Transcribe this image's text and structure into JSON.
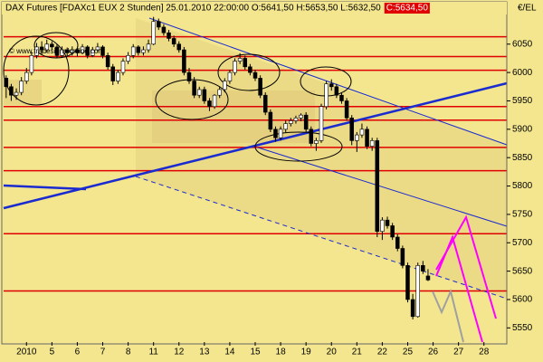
{
  "chart_data": {
    "type": "candlestick",
    "title": "DAX Futures [FDAXc1 EUX 2 Stunden] 25.01.2010 22:00:00 O:5641,50 H:5653,50 L:5632,50",
    "title_last": "C:5634,50",
    "unit_label": "€/EL",
    "watermark": "© www.tradesignalonline.com",
    "up_color": "#ffffff",
    "down_color": "#000000",
    "background": "#f3e68f",
    "categories": [
      null,
      null,
      null,
      null,
      "2010",
      null,
      null,
      null,
      null,
      "5",
      null,
      null,
      null,
      null,
      "6",
      null,
      null,
      null,
      null,
      "7",
      null,
      null,
      null,
      null,
      "8",
      null,
      null,
      null,
      null,
      "11",
      null,
      null,
      null,
      null,
      "12",
      null,
      null,
      null,
      null,
      "13",
      null,
      null,
      null,
      null,
      "14",
      null,
      null,
      null,
      null,
      "15",
      null,
      null,
      null,
      null,
      "18",
      null,
      null,
      null,
      null,
      "19",
      null,
      null,
      null,
      null,
      "20",
      null,
      null,
      null,
      null,
      "21",
      null,
      null,
      null,
      null,
      "22",
      null,
      null,
      null,
      null,
      "25",
      null,
      null,
      null,
      null,
      "26",
      null,
      null,
      null,
      null,
      "27",
      null,
      null,
      null,
      null,
      "28",
      null,
      null,
      null,
      null
    ],
    "ohlc": [
      [
        5990,
        5995,
        5955,
        5975
      ],
      [
        5975,
        5980,
        5950,
        5960
      ],
      [
        5960,
        5972,
        5952,
        5965
      ],
      [
        5965,
        5992,
        5960,
        5985
      ],
      [
        5985,
        6008,
        5980,
        6000
      ],
      [
        6000,
        6036,
        5995,
        6030
      ],
      [
        6030,
        6052,
        6025,
        6045
      ],
      [
        6045,
        6055,
        6032,
        6040
      ],
      [
        6040,
        6058,
        6035,
        6050
      ],
      [
        6050,
        6055,
        6040,
        6045
      ],
      [
        6045,
        6050,
        6025,
        6030
      ],
      [
        6030,
        6046,
        6026,
        6040
      ],
      [
        6040,
        6044,
        6028,
        6035
      ],
      [
        6035,
        6046,
        6030,
        6040
      ],
      [
        6040,
        6042,
        6028,
        6035
      ],
      [
        6035,
        6050,
        6032,
        6045
      ],
      [
        6045,
        6048,
        6025,
        6030
      ],
      [
        6030,
        6045,
        6027,
        6040
      ],
      [
        6040,
        6052,
        6036,
        6045
      ],
      [
        6045,
        6048,
        6025,
        6030
      ],
      [
        6030,
        6035,
        6005,
        6010
      ],
      [
        6010,
        6015,
        5978,
        5985
      ],
      [
        5985,
        6005,
        5980,
        6000
      ],
      [
        6000,
        6025,
        5995,
        6020
      ],
      [
        6020,
        6036,
        6015,
        6030
      ],
      [
        6030,
        6050,
        6025,
        6045
      ],
      [
        6045,
        6048,
        6030,
        6035
      ],
      [
        6035,
        6046,
        6030,
        6040
      ],
      [
        6040,
        6058,
        6035,
        6050
      ],
      [
        6050,
        6098,
        6048,
        6090
      ],
      [
        6090,
        6095,
        6075,
        6080
      ],
      [
        6080,
        6085,
        6065,
        6070
      ],
      [
        6070,
        6075,
        6055,
        6060
      ],
      [
        6060,
        6065,
        6045,
        6050
      ],
      [
        6050,
        6055,
        6035,
        6040
      ],
      [
        6040,
        6045,
        5995,
        6000
      ],
      [
        6000,
        6008,
        5980,
        5985
      ],
      [
        5985,
        5992,
        5955,
        5960
      ],
      [
        5960,
        5975,
        5955,
        5970
      ],
      [
        5970,
        5975,
        5945,
        5950
      ],
      [
        5950,
        5955,
        5932,
        5940
      ],
      [
        5940,
        5962,
        5936,
        5960
      ],
      [
        5960,
        5975,
        5955,
        5970
      ],
      [
        5970,
        5990,
        5965,
        5985
      ],
      [
        5985,
        6005,
        5980,
        6000
      ],
      [
        6000,
        6025,
        5995,
        6020
      ],
      [
        6020,
        6034,
        6015,
        6025
      ],
      [
        6025,
        6030,
        6005,
        6010
      ],
      [
        6010,
        6015,
        5995,
        6000
      ],
      [
        6000,
        6005,
        5985,
        5990
      ],
      [
        5990,
        5995,
        5955,
        5960
      ],
      [
        5960,
        5965,
        5925,
        5930
      ],
      [
        5930,
        5935,
        5895,
        5900
      ],
      [
        5900,
        5905,
        5878,
        5885
      ],
      [
        5885,
        5905,
        5880,
        5900
      ],
      [
        5900,
        5915,
        5895,
        5910
      ],
      [
        5910,
        5920,
        5905,
        5915
      ],
      [
        5915,
        5924,
        5910,
        5920
      ],
      [
        5920,
        5928,
        5914,
        5925
      ],
      [
        5925,
        5930,
        5895,
        5900
      ],
      [
        5900,
        5905,
        5870,
        5875
      ],
      [
        5875,
        5885,
        5862,
        5880
      ],
      [
        5880,
        5945,
        5876,
        5940
      ],
      [
        5940,
        5985,
        5935,
        5980
      ],
      [
        5980,
        5988,
        5968,
        5975
      ],
      [
        5975,
        5980,
        5955,
        5960
      ],
      [
        5960,
        5965,
        5945,
        5950
      ],
      [
        5950,
        5955,
        5915,
        5920
      ],
      [
        5920,
        5925,
        5872,
        5880
      ],
      [
        5880,
        5895,
        5860,
        5890
      ],
      [
        5890,
        5910,
        5885,
        5900
      ],
      [
        5900,
        5905,
        5865,
        5870
      ],
      [
        5870,
        5885,
        5862,
        5880
      ],
      [
        5880,
        5885,
        5710,
        5720
      ],
      [
        5720,
        5745,
        5705,
        5740
      ],
      [
        5740,
        5746,
        5725,
        5730
      ],
      [
        5730,
        5735,
        5705,
        5710
      ],
      [
        5710,
        5715,
        5685,
        5690
      ],
      [
        5690,
        5695,
        5655,
        5660
      ],
      [
        5660,
        5665,
        5595,
        5600
      ],
      [
        5600,
        5610,
        5565,
        5570
      ],
      [
        5570,
        5665,
        5568,
        5660
      ],
      [
        5660,
        5668,
        5645,
        5650
      ],
      [
        5641.5,
        5653.5,
        5632.5,
        5634.5
      ],
      null,
      null,
      null,
      null,
      null,
      null,
      null,
      null,
      null,
      null,
      null,
      null,
      null,
      null,
      null
    ],
    "hlines": {
      "color": "#e00000",
      "values": [
        6063,
        6028,
        6004,
        5940,
        5916,
        5868,
        5827,
        5716,
        5615
      ]
    },
    "ylim": [
      5525,
      6115
    ],
    "yticks": [
      5550,
      5600,
      5650,
      5700,
      5750,
      5800,
      5850,
      5900,
      5950,
      6000,
      6050
    ]
  }
}
